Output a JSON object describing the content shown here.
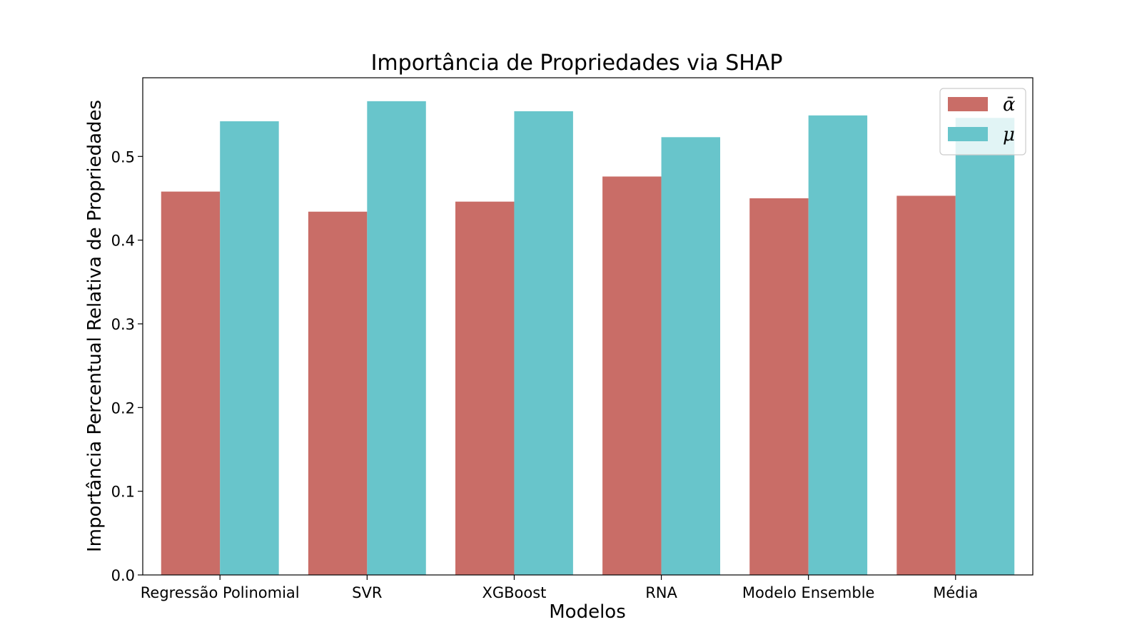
{
  "chart_data": {
    "type": "bar",
    "title": "Importância de Propriedades via SHAP",
    "xlabel": "Modelos",
    "ylabel": "Importância Percentual Relativa de Propriedades",
    "categories": [
      "Regressão Polinomial",
      "SVR",
      "XGBoost",
      "RNA",
      "Modelo Ensemble",
      "Média"
    ],
    "series": [
      {
        "name": "ᾱ",
        "color": "#c96d67",
        "values": [
          0.458,
          0.434,
          0.446,
          0.476,
          0.45,
          0.453
        ]
      },
      {
        "name": "μ",
        "color": "#68c5cb",
        "values": [
          0.542,
          0.566,
          0.554,
          0.523,
          0.549,
          0.546
        ]
      }
    ],
    "ylim": [
      0,
      0.594
    ],
    "yticks": [
      "0.0",
      "0.1",
      "0.2",
      "0.3",
      "0.4",
      "0.5"
    ],
    "legend": "top-right",
    "grid": false
  }
}
